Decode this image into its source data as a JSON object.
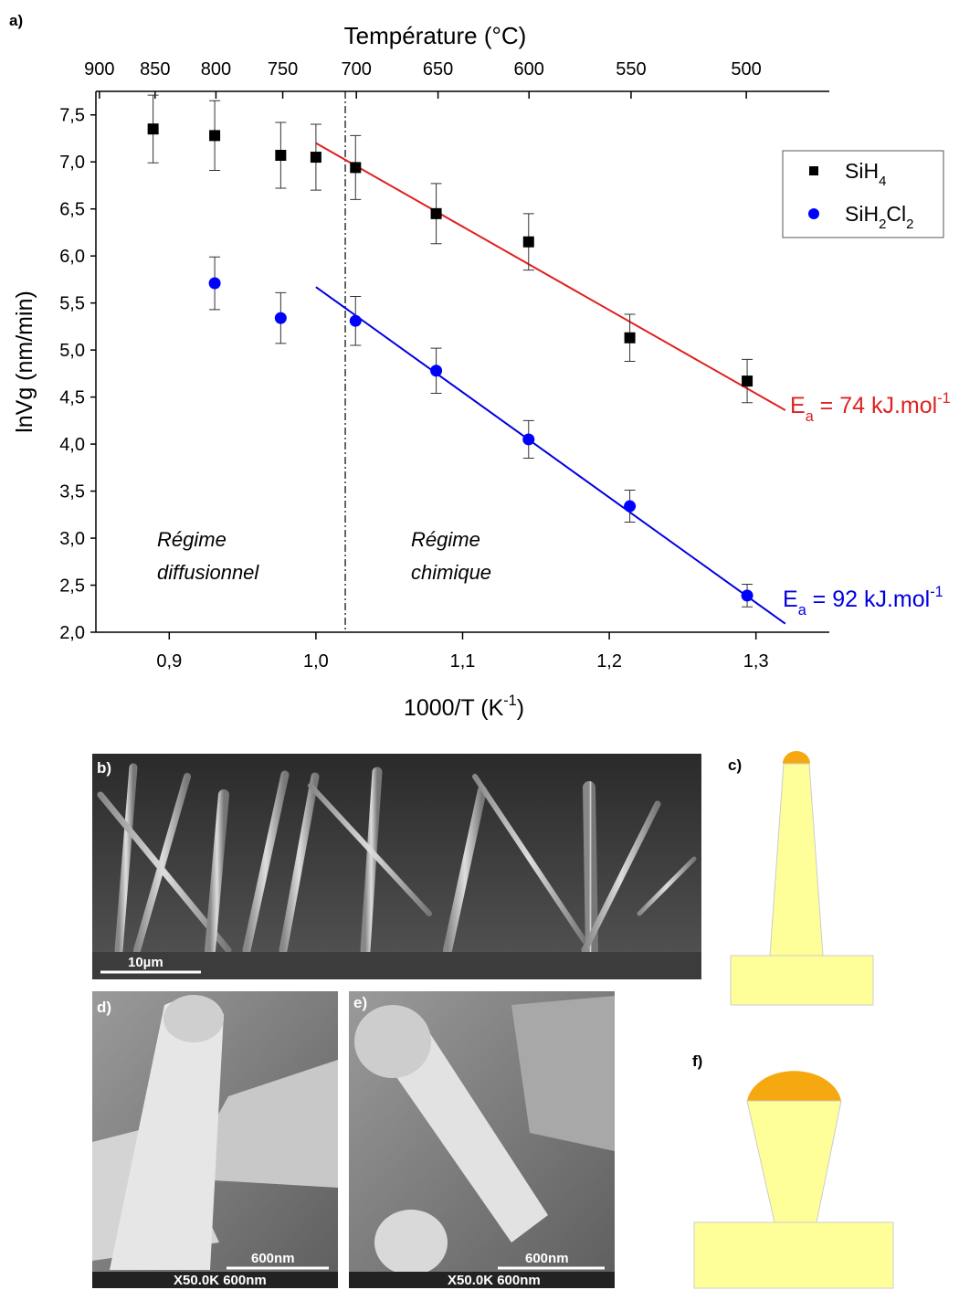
{
  "chart_data": {
    "type": "scatter",
    "panel_label": "a)",
    "x_label": [
      {
        "text": "1000/T (K"
      },
      {
        "text": "-1",
        "sup": true
      },
      {
        "text": ")"
      }
    ],
    "y_label": "lnVg (nm/min)",
    "x2_label": "Température (°C)",
    "xlim": [
      0.85,
      1.35
    ],
    "ylim": [
      2.0,
      7.75
    ],
    "xticks": [
      {
        "value": 0.9,
        "label": "0,9"
      },
      {
        "value": 1.0,
        "label": "1,0"
      },
      {
        "value": 1.1,
        "label": "1,1"
      },
      {
        "value": 1.2,
        "label": "1,2"
      },
      {
        "value": 1.3,
        "label": "1,3"
      }
    ],
    "yticks": [
      {
        "value": 2.0,
        "label": "2,0"
      },
      {
        "value": 2.5,
        "label": "2,5"
      },
      {
        "value": 3.0,
        "label": "3,0"
      },
      {
        "value": 3.5,
        "label": "3,5"
      },
      {
        "value": 4.0,
        "label": "4,0"
      },
      {
        "value": 4.5,
        "label": "4,5"
      },
      {
        "value": 5.0,
        "label": "5,0"
      },
      {
        "value": 5.5,
        "label": "5,5"
      },
      {
        "value": 6.0,
        "label": "6,0"
      },
      {
        "value": 6.5,
        "label": "6,5"
      },
      {
        "value": 7.0,
        "label": "7,0"
      },
      {
        "value": 7.5,
        "label": "7,5"
      }
    ],
    "x2ticks": [
      900,
      850,
      800,
      750,
      700,
      650,
      600,
      550,
      500
    ],
    "legend": "upper right",
    "series": [
      {
        "name": [
          {
            "text": "SiH"
          },
          {
            "text": "4",
            "sub": true
          }
        ],
        "marker": "square",
        "color": "#000000",
        "x": [
          0.889,
          0.931,
          0.976,
          1.0,
          1.027,
          1.082,
          1.145,
          1.214,
          1.294
        ],
        "values": [
          7.35,
          7.28,
          7.07,
          7.05,
          6.94,
          6.45,
          6.15,
          5.13,
          4.67
        ],
        "errors": [
          0.36,
          0.37,
          0.35,
          0.35,
          0.34,
          0.32,
          0.3,
          0.25,
          0.23
        ]
      },
      {
        "name": [
          {
            "text": "SiH"
          },
          {
            "text": "2",
            "sub": true
          },
          {
            "text": "Cl"
          },
          {
            "text": "2",
            "sub": true
          }
        ],
        "marker": "circle",
        "color": "#0000ff",
        "x": [
          0.931,
          0.976,
          1.027,
          1.082,
          1.145,
          1.214,
          1.294
        ],
        "values": [
          5.71,
          5.34,
          5.31,
          4.78,
          4.05,
          3.34,
          2.39
        ],
        "errors": [
          0.28,
          0.27,
          0.26,
          0.24,
          0.2,
          0.17,
          0.12
        ]
      }
    ],
    "fits": [
      {
        "color": "#e02020",
        "x": [
          1.0,
          1.32
        ],
        "values": [
          7.2,
          4.36
        ],
        "label": [
          {
            "text": "E"
          },
          {
            "text": "a",
            "sub": true
          },
          {
            "text": " = 74 kJ.mol"
          },
          {
            "text": "-1",
            "sup": true
          }
        ]
      },
      {
        "color": "#0000e0",
        "x": [
          1.0,
          1.32
        ],
        "values": [
          5.67,
          2.09
        ],
        "label": [
          {
            "text": "E"
          },
          {
            "text": "a",
            "sub": true
          },
          {
            "text": " = 92 kJ.mol"
          },
          {
            "text": "-1",
            "sup": true
          }
        ]
      }
    ],
    "boundary_x": 1.02,
    "regions": [
      [
        "Régime",
        "diffusionnel"
      ],
      [
        "Régime",
        "chimique"
      ]
    ]
  },
  "panels": {
    "b": {
      "label": "b)",
      "scale_bar": "10µm"
    },
    "c": {
      "label": "c)"
    },
    "d": {
      "label": "d)",
      "scale_bar": "600nm",
      "info": "X50.0K  600nm"
    },
    "e": {
      "label": "e)",
      "scale_bar": "600nm",
      "info": "X50.0K  600nm"
    },
    "f": {
      "label": "f)"
    }
  }
}
